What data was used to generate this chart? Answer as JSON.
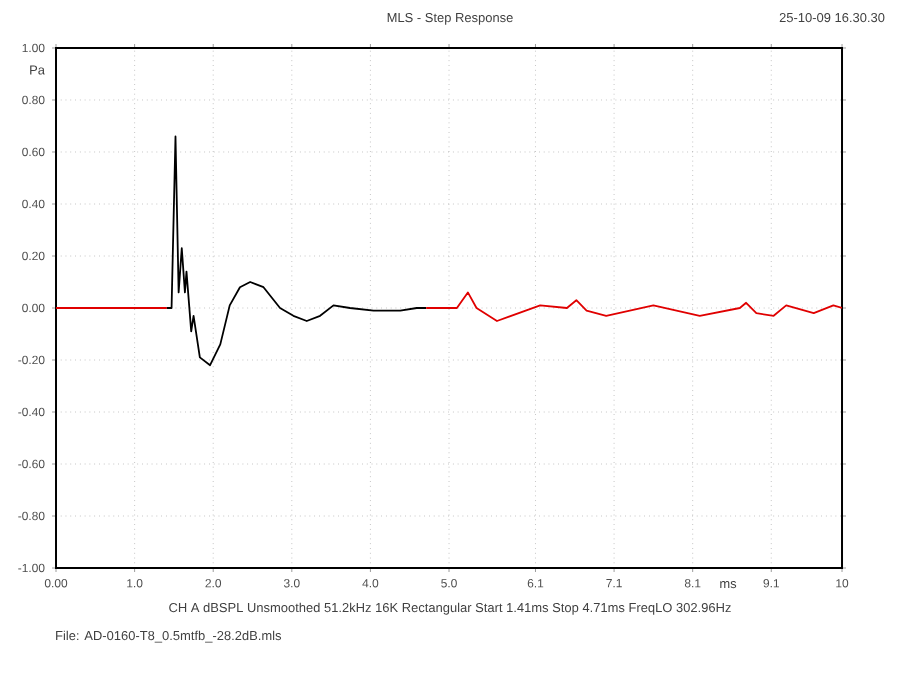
{
  "chart_data": {
    "type": "line",
    "title": "MLS - Step Response",
    "ylabel": "Pa",
    "annotations": [
      "25-10-09 16.30.30",
      "CH A   dBSPL   Unsmoothed   51.2kHz   16K   Rectangular   Start 1.41ms   Stop 4.71ms   FreqLO 302.96Hz",
      "File: AD-0160-T8_0.5mtfb_-28.2dB.mls"
    ],
    "xlabel": "ms",
    "xlim": [
      0,
      10
    ],
    "ylim": [
      -1,
      1
    ],
    "xticks": [
      {
        "value": 0,
        "label": "0.00"
      },
      {
        "value": 1,
        "label": "1.0"
      },
      {
        "value": 2,
        "label": "2.0"
      },
      {
        "value": 3,
        "label": "3.0"
      },
      {
        "value": 4,
        "label": "4.0"
      },
      {
        "value": 5,
        "label": "5.0"
      },
      6.1,
      7.1,
      8.1,
      9.1,
      10
    ],
    "yticks": [
      {
        "value": 1,
        "label": "1.00"
      },
      {
        "value": 0.8,
        "label": "0.80"
      },
      {
        "value": 0.6,
        "label": "0.60"
      },
      {
        "value": 0.4,
        "label": "0.40"
      },
      {
        "value": 0.2,
        "label": "0.20"
      },
      {
        "value": 0,
        "label": "0.00"
      },
      {
        "value": -0.2,
        "label": "-0.20"
      },
      {
        "value": -0.4,
        "label": "-0.40"
      },
      {
        "value": -0.6,
        "label": "-0.60"
      },
      {
        "value": -0.8,
        "label": "-0.80"
      },
      {
        "value": -1,
        "label": "-1.00"
      }
    ],
    "grid": true,
    "marker": "none",
    "line_style": "solid",
    "series": [
      {
        "color": "#e00000",
        "x": [
          0,
          1.41
        ],
        "values": [
          0,
          0
        ]
      },
      {
        "color": "#000000",
        "x": [
          1.41,
          1.47,
          1.52,
          1.56,
          1.6,
          1.64,
          1.66,
          1.72,
          1.75,
          1.83,
          1.96,
          2.09,
          2.21,
          2.34,
          2.47,
          2.64,
          2.85,
          3.02,
          3.19,
          3.36,
          3.53,
          3.74,
          4.04,
          4.38,
          4.59,
          4.71
        ],
        "values": [
          0,
          0,
          0.66,
          0.06,
          0.23,
          0.06,
          0.14,
          -0.09,
          -0.03,
          -0.19,
          -0.22,
          -0.14,
          0.01,
          0.08,
          0.1,
          0.08,
          0,
          -0.03,
          -0.05,
          -0.03,
          0.01,
          0,
          -0.01,
          -0.01,
          0,
          0
        ]
      },
      {
        "color": "#e00000",
        "x": [
          4.71,
          5.1,
          5.24,
          5.35,
          5.61,
          6.16,
          6.5,
          6.62,
          6.75,
          7.0,
          7.6,
          8.19,
          8.7,
          8.78,
          8.91,
          9.13,
          9.29,
          9.64,
          9.89,
          10
        ],
        "values": [
          0,
          0,
          0.06,
          0,
          -0.05,
          0.01,
          0,
          0.03,
          -0.01,
          -0.03,
          0.01,
          -0.03,
          0,
          0.02,
          -0.02,
          -0.03,
          0.01,
          -0.02,
          0.01,
          0
        ]
      }
    ]
  }
}
